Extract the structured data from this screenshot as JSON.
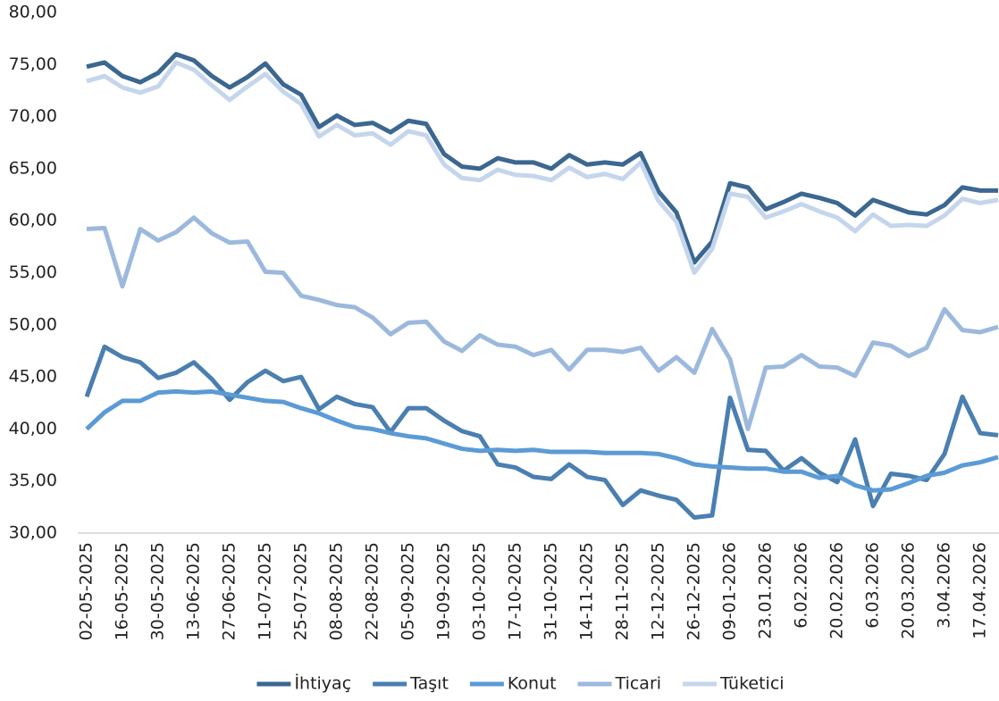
{
  "chart_data": {
    "type": "line",
    "categories": [
      "02-05-2025",
      null,
      "16-05-2025",
      null,
      "30-05-2025",
      null,
      "13-06-2025",
      null,
      "27-06-2025",
      null,
      "11-07-2025",
      null,
      "25-07-2025",
      null,
      "08-08-2025",
      null,
      "22-08-2025",
      null,
      "05-09-2025",
      null,
      "19-09-2025",
      null,
      "03-10-2025",
      null,
      "17-10-2025",
      null,
      "31-10-2025",
      null,
      "14-11-2025",
      null,
      "28-11-2025",
      null,
      "12-12-2025",
      null,
      "26-12-2025",
      null,
      "09-01-2026",
      null,
      "23.01.2026",
      null,
      "6.02.2026",
      null,
      "20.02.2026",
      null,
      "6.03.2026",
      null,
      "20.03.2026",
      null,
      "3.04.2026",
      null,
      "17.04.2026",
      null
    ],
    "series": [
      {
        "name": "İhtiyaç",
        "color": "#3b6791",
        "values": [
          74.8,
          75.2,
          73.9,
          73.3,
          74.2,
          76.0,
          75.4,
          73.9,
          72.8,
          73.8,
          75.1,
          73.1,
          72.1,
          69.0,
          70.1,
          69.2,
          69.4,
          68.5,
          69.6,
          69.3,
          66.4,
          65.2,
          65.0,
          66.0,
          65.6,
          65.6,
          65.0,
          66.3,
          65.4,
          65.6,
          65.4,
          66.5,
          62.8,
          60.8,
          56.0,
          58.0,
          63.6,
          63.2,
          61.1,
          61.8,
          62.6,
          62.2,
          61.7,
          60.5,
          62.0,
          61.4,
          60.8,
          60.6,
          61.5,
          63.2,
          62.9,
          62.9
        ]
      },
      {
        "name": "Taşıt",
        "color": "#4a7fb0",
        "values": [
          43.1,
          47.9,
          46.9,
          46.4,
          44.9,
          45.4,
          46.4,
          44.8,
          42.8,
          44.5,
          45.6,
          44.6,
          45.0,
          41.9,
          43.1,
          42.4,
          42.1,
          39.7,
          42.0,
          42.0,
          40.8,
          39.8,
          39.3,
          36.6,
          36.3,
          35.4,
          35.2,
          36.6,
          35.4,
          35.1,
          32.7,
          34.1,
          33.6,
          33.2,
          31.5,
          31.7,
          43.0,
          38.0,
          37.9,
          36.0,
          37.2,
          35.8,
          34.9,
          39.0,
          32.6,
          35.7,
          35.5,
          35.1,
          37.6,
          43.1,
          39.6,
          39.4
        ]
      },
      {
        "name": "Konut",
        "color": "#5b9bd5",
        "values": [
          40.0,
          41.6,
          42.7,
          42.7,
          43.5,
          43.6,
          43.5,
          43.6,
          43.3,
          43.0,
          42.7,
          42.6,
          42.0,
          41.5,
          40.8,
          40.2,
          40.0,
          39.6,
          39.3,
          39.1,
          38.6,
          38.1,
          37.9,
          38.0,
          37.9,
          38.0,
          37.8,
          37.8,
          37.8,
          37.7,
          37.7,
          37.7,
          37.6,
          37.2,
          36.6,
          36.4,
          36.3,
          36.2,
          36.2,
          35.9,
          35.9,
          35.3,
          35.5,
          34.6,
          34.1,
          34.2,
          34.8,
          35.5,
          35.8,
          36.5,
          36.8,
          37.3
        ]
      },
      {
        "name": "Ticari",
        "color": "#9cb9dd",
        "values": [
          59.2,
          59.3,
          53.7,
          59.2,
          58.1,
          58.9,
          60.3,
          58.8,
          57.9,
          58.0,
          55.1,
          55.0,
          52.8,
          52.4,
          51.9,
          51.7,
          50.7,
          49.1,
          50.2,
          50.3,
          48.4,
          47.5,
          49.0,
          48.1,
          47.9,
          47.1,
          47.6,
          45.7,
          47.6,
          47.6,
          47.4,
          47.8,
          45.6,
          46.9,
          45.4,
          49.6,
          46.7,
          40.0,
          45.9,
          46.0,
          47.1,
          46.0,
          45.9,
          45.1,
          48.3,
          48.0,
          47.0,
          47.8,
          51.5,
          49.5,
          49.3,
          49.8
        ]
      },
      {
        "name": "Tüketici",
        "color": "#c5d6ec",
        "values": [
          73.4,
          73.9,
          72.8,
          72.3,
          72.9,
          75.2,
          74.5,
          73.0,
          71.6,
          72.9,
          74.1,
          72.4,
          71.2,
          68.1,
          69.2,
          68.2,
          68.4,
          67.3,
          68.6,
          68.2,
          65.4,
          64.1,
          63.9,
          64.9,
          64.4,
          64.3,
          63.9,
          65.1,
          64.2,
          64.5,
          64.0,
          65.6,
          61.9,
          59.9,
          55.0,
          57.3,
          62.6,
          62.3,
          60.3,
          60.9,
          61.6,
          60.9,
          60.3,
          59.0,
          60.6,
          59.5,
          59.6,
          59.5,
          60.5,
          62.1,
          61.7,
          62.0
        ]
      }
    ],
    "ylim": [
      30,
      80
    ],
    "yticks": [
      {
        "value": 30,
        "label": "30,00"
      },
      {
        "value": 35,
        "label": "35,00"
      },
      {
        "value": 40,
        "label": "40,00"
      },
      {
        "value": 45,
        "label": "45,00"
      },
      {
        "value": 50,
        "label": "50,00"
      },
      {
        "value": 55,
        "label": "55,00"
      },
      {
        "value": 60,
        "label": "60,00"
      },
      {
        "value": 65,
        "label": "65,00"
      },
      {
        "value": 70,
        "label": "70,00"
      },
      {
        "value": 75,
        "label": "75,00"
      },
      {
        "value": 80,
        "label": "80,00"
      }
    ],
    "grid": false,
    "legend": "bottom"
  }
}
